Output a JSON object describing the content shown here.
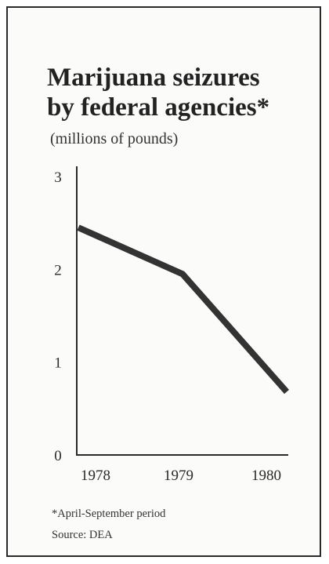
{
  "chart_data": {
    "type": "line",
    "title_lines": [
      "Marijuana seizures",
      "by federal agencies*"
    ],
    "subtitle": "(millions of pounds)",
    "x": [
      "1978",
      "1979",
      "1980"
    ],
    "series": [
      {
        "values": [
          2.45,
          1.95,
          0.68
        ]
      }
    ],
    "ylim": [
      0,
      3
    ],
    "yticks": [
      "0",
      "1",
      "2",
      "3"
    ],
    "grid": false,
    "footnote": "*April-September period",
    "source": "Source: DEA",
    "line_color": "#333333"
  }
}
